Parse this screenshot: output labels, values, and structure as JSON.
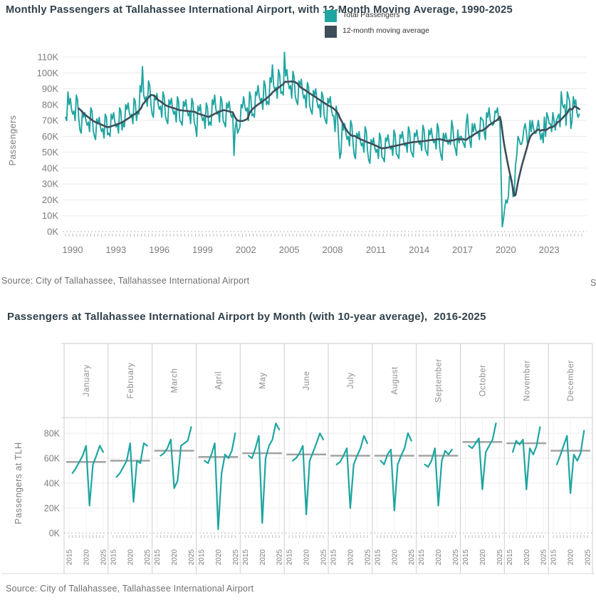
{
  "colors": {
    "teal": "#1fa5a1",
    "slate": "#3e4d59",
    "title_text": "#31414c",
    "axis_text": "#7d7d7d",
    "month_text": "#8d8d8d",
    "grid": "#ebebeb",
    "grid_faint": "#f1f1f1",
    "zero_line": "#b8b8b8",
    "tick": "#bdbdbd",
    "separator": "#cdcdcd",
    "border": "#dcdcdc",
    "avg_line": "#a3a3a3",
    "source_text": "#707070",
    "legend_text": "#333333"
  },
  "chart_data": [
    {
      "type": "line",
      "title": "Monthly Passengers at Tallahassee International Airport, with 12-Month Moving Average, 1990-2025",
      "ylabel": "Passengers",
      "source": "Source: City of Tallahassee, Tallahassee International Airport",
      "clipped_right_text": "S",
      "grid": "horizontal",
      "legend_position": "top-center-overlapping-title",
      "unit": "thousands of passengers",
      "ylim": [
        0,
        115
      ],
      "yticks": [
        0,
        10,
        20,
        30,
        40,
        50,
        60,
        70,
        80,
        90,
        100,
        110
      ],
      "ytick_suffix": "K",
      "xticks": [
        1990,
        1993,
        1996,
        1999,
        2002,
        2005,
        2008,
        2011,
        2014,
        2017,
        2020,
        2023
      ],
      "x_domain": [
        1990,
        2026
      ],
      "series": [
        {
          "name": "Total Passengers",
          "start_year": 1990,
          "monthly_values_by_year": [
            [
              72,
              70,
              88,
              80,
              84,
              77,
              74,
              76,
              70,
              86,
              83,
              71
            ],
            [
              64,
              62,
              76,
              72,
              75,
              70,
              67,
              69,
              63,
              78,
              76,
              64
            ],
            [
              60,
              58,
              71,
              68,
              72,
              66,
              63,
              65,
              59,
              74,
              72,
              61
            ],
            [
              62,
              60,
              74,
              71,
              75,
              69,
              66,
              68,
              62,
              78,
              76,
              64
            ],
            [
              68,
              66,
              80,
              77,
              81,
              75,
              72,
              74,
              68,
              84,
              82,
              70
            ],
            [
              76,
              74,
              92,
              88,
              104,
              86,
              83,
              85,
              79,
              95,
              92,
              80
            ],
            [
              74,
              72,
              86,
              83,
              87,
              80,
              77,
              79,
              72,
              88,
              85,
              73
            ],
            [
              70,
              68,
              83,
              80,
              84,
              77,
              74,
              76,
              69,
              85,
              82,
              70
            ],
            [
              69,
              67,
              82,
              79,
              83,
              76,
              73,
              75,
              68,
              84,
              81,
              69
            ],
            [
              66,
              60,
              79,
              76,
              80,
              73,
              70,
              72,
              65,
              81,
              78,
              67
            ],
            [
              69,
              67,
              83,
              80,
              86,
              77,
              74,
              76,
              69,
              85,
              82,
              70
            ],
            [
              68,
              66,
              81,
              78,
              82,
              75,
              72,
              74,
              48,
              65,
              70,
              62
            ],
            [
              64,
              66,
              80,
              78,
              85,
              79,
              76,
              78,
              70,
              88,
              85,
              73
            ],
            [
              74,
              72,
              88,
              86,
              92,
              85,
              82,
              84,
              77,
              95,
              92,
              80
            ],
            [
              82,
              80,
              97,
              94,
              105,
              92,
              89,
              91,
              84,
              102,
              99,
              87
            ],
            [
              88,
              86,
              113,
              98,
              102,
              94,
              90,
              92,
              84,
              101,
              97,
              85
            ],
            [
              82,
              80,
              95,
              92,
              96,
              88,
              84,
              86,
              78,
              94,
              91,
              79
            ],
            [
              76,
              74,
              89,
              86,
              90,
              82,
              78,
              80,
              72,
              88,
              85,
              73
            ],
            [
              70,
              68,
              84,
              81,
              85,
              77,
              73,
              73,
              63,
              79,
              73,
              58
            ],
            [
              46,
              50,
              68,
              64,
              68,
              62,
              58,
              60,
              54,
              70,
              67,
              55
            ],
            [
              48,
              46,
              62,
              59,
              63,
              57,
              54,
              56,
              50,
              66,
              63,
              51
            ],
            [
              45,
              43,
              58,
              55,
              59,
              53,
              50,
              52,
              46,
              62,
              59,
              47
            ],
            [
              46,
              44,
              59,
              57,
              61,
              55,
              52,
              54,
              48,
              64,
              61,
              49
            ],
            [
              48,
              46,
              61,
              59,
              63,
              57,
              54,
              56,
              50,
              66,
              63,
              51
            ],
            [
              49,
              47,
              62,
              60,
              64,
              58,
              55,
              57,
              51,
              67,
              64,
              52
            ],
            [
              50,
              48,
              64,
              61,
              65,
              59,
              56,
              58,
              52,
              68,
              65,
              53
            ],
            [
              48,
              45,
              62,
              58,
              62,
              58,
              55,
              58,
              55,
              70,
              65,
              55
            ],
            [
              52,
              48,
              64,
              56,
              60,
              60,
              57,
              55,
              53,
              68,
              74,
              62
            ],
            [
              57,
              53,
              68,
              63,
              68,
              64,
              62,
              63,
              58,
              72,
              71,
              70
            ],
            [
              62,
              58,
              75,
              72,
              78,
              70,
              68,
              67,
              68,
              76,
              75,
              78
            ],
            [
              70,
              72,
              36,
              3,
              8,
              15,
              20,
              18,
              22,
              35,
              35,
              32
            ],
            [
              22,
              25,
              42,
              48,
              60,
              58,
              55,
              55,
              58,
              65,
              68,
              63
            ],
            [
              55,
              58,
              70,
              63,
              70,
              65,
              62,
              62,
              66,
              70,
              63,
              58
            ],
            [
              62,
              56,
              72,
              60,
              75,
              72,
              68,
              68,
              63,
              75,
              70,
              64
            ],
            [
              70,
              72,
              74,
              66,
              88,
              80,
              78,
              80,
              67,
              88,
              85,
              82
            ],
            [
              65,
              70,
              85,
              80,
              83,
              75,
              72,
              74
            ]
          ]
        },
        {
          "name": "12-month moving average",
          "derived_from": "Total Passengers",
          "window_months": 12
        }
      ]
    },
    {
      "type": "small-multiples-line",
      "title": "Passengers at Tallahassee International Airport by Month (with 10-year average),  2016-2025",
      "ylabel": "Passengers at TLH",
      "source": "Source: City of Tallahassee, Tallahassee International Airport",
      "unit": "thousands of passengers",
      "ylim": [
        0,
        92
      ],
      "yticks": [
        0,
        20,
        40,
        60,
        80
      ],
      "ytick_suffix": "K",
      "panel_xticks": [
        2015,
        2020,
        2025
      ],
      "panel_x_domain": [
        2015,
        2025
      ],
      "months": [
        {
          "label": "January",
          "start_year": 2016,
          "ten_year_avg": 57,
          "values": [
            48,
            52,
            57,
            62,
            70,
            22,
            55,
            62,
            70,
            65
          ]
        },
        {
          "label": "February",
          "start_year": 2016,
          "ten_year_avg": 58,
          "values": [
            45,
            48,
            53,
            58,
            72,
            25,
            58,
            56,
            72,
            70
          ]
        },
        {
          "label": "March",
          "start_year": 2016,
          "ten_year_avg": 66,
          "values": [
            62,
            64,
            68,
            75,
            36,
            42,
            70,
            72,
            74,
            85
          ]
        },
        {
          "label": "April",
          "start_year": 2016,
          "ten_year_avg": 61,
          "values": [
            58,
            56,
            63,
            72,
            3,
            48,
            63,
            60,
            66,
            80
          ]
        },
        {
          "label": "May",
          "start_year": 2016,
          "ten_year_avg": 64,
          "values": [
            62,
            60,
            68,
            78,
            8,
            60,
            70,
            75,
            88,
            83
          ]
        },
        {
          "label": "June",
          "start_year": 2016,
          "ten_year_avg": 63,
          "values": [
            58,
            60,
            64,
            70,
            15,
            58,
            65,
            72,
            80,
            75
          ]
        },
        {
          "label": "July",
          "start_year": 2016,
          "ten_year_avg": 62,
          "values": [
            55,
            57,
            62,
            68,
            20,
            55,
            62,
            68,
            78,
            72
          ]
        },
        {
          "label": "August",
          "start_year": 2016,
          "ten_year_avg": 62,
          "values": [
            58,
            55,
            63,
            67,
            18,
            55,
            62,
            68,
            80,
            74
          ]
        },
        {
          "label": "September",
          "start_year": 2016,
          "ten_year_avg": 62,
          "values": [
            55,
            53,
            58,
            68,
            22,
            58,
            66,
            63,
            67
          ]
        },
        {
          "label": "October",
          "start_year": 2016,
          "ten_year_avg": 73,
          "values": [
            70,
            68,
            72,
            76,
            35,
            65,
            70,
            75,
            88
          ]
        },
        {
          "label": "November",
          "start_year": 2016,
          "ten_year_avg": 72,
          "values": [
            65,
            74,
            71,
            75,
            35,
            68,
            63,
            70,
            85
          ]
        },
        {
          "label": "December",
          "start_year": 2016,
          "ten_year_avg": 66,
          "values": [
            55,
            62,
            70,
            78,
            32,
            63,
            58,
            64,
            82
          ]
        }
      ]
    }
  ]
}
